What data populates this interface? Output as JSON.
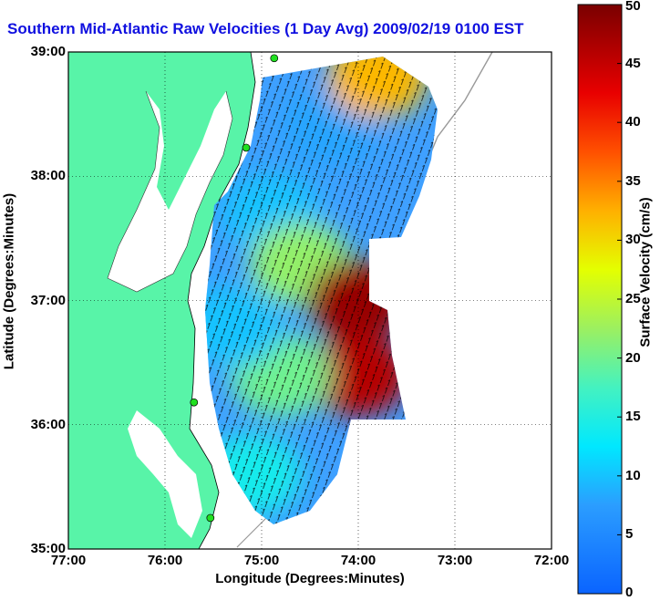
{
  "title": "Southern Mid-Atlantic Raw Velocities (1 Day Avg) 2009/02/19 0100 EST",
  "chart_data": {
    "type": "heatmap",
    "title": "Southern Mid-Atlantic Raw Velocities (1 Day Avg) 2009/02/19 0100 EST",
    "xlabel": "Longitude (Degrees:Minutes)",
    "ylabel": "Latitude (Degrees:Minutes)",
    "xlim": [
      -77,
      -72
    ],
    "ylim": [
      35,
      39
    ],
    "x_ticks": [
      "77:00",
      "76:00",
      "75:00",
      "74:00",
      "73:00",
      "72:00"
    ],
    "y_ticks": [
      "35:00",
      "36:00",
      "37:00",
      "38:00",
      "39:00"
    ],
    "grid": true,
    "colorbar": {
      "label": "Surface Velocity (cm/s)",
      "min": 0,
      "max": 50,
      "ticks": [
        "0",
        "5",
        "10",
        "15",
        "20",
        "25",
        "30",
        "35",
        "40",
        "45",
        "50"
      ]
    },
    "land_color": "#58f4a8",
    "velocity_regions": [
      {
        "lon": -74.3,
        "lat": 38.4,
        "speed": 8
      },
      {
        "lon": -74.9,
        "lat": 37.7,
        "speed": 10
      },
      {
        "lon": -74.6,
        "lat": 37.3,
        "speed": 22
      },
      {
        "lon": -74.0,
        "lat": 37.0,
        "speed": 48
      },
      {
        "lon": -74.0,
        "lat": 36.4,
        "speed": 46
      },
      {
        "lon": -74.8,
        "lat": 36.4,
        "speed": 20
      },
      {
        "lon": -75.3,
        "lat": 36.8,
        "speed": 10
      },
      {
        "lon": -73.8,
        "lat": 38.8,
        "speed": 32
      },
      {
        "lon": -75.1,
        "lat": 35.6,
        "speed": 14
      }
    ],
    "radar_sites": [
      {
        "lon": -74.87,
        "lat": 38.95
      },
      {
        "lon": -75.16,
        "lat": 38.23
      },
      {
        "lon": -75.7,
        "lat": 36.18
      },
      {
        "lon": -75.53,
        "lat": 35.25
      }
    ]
  }
}
